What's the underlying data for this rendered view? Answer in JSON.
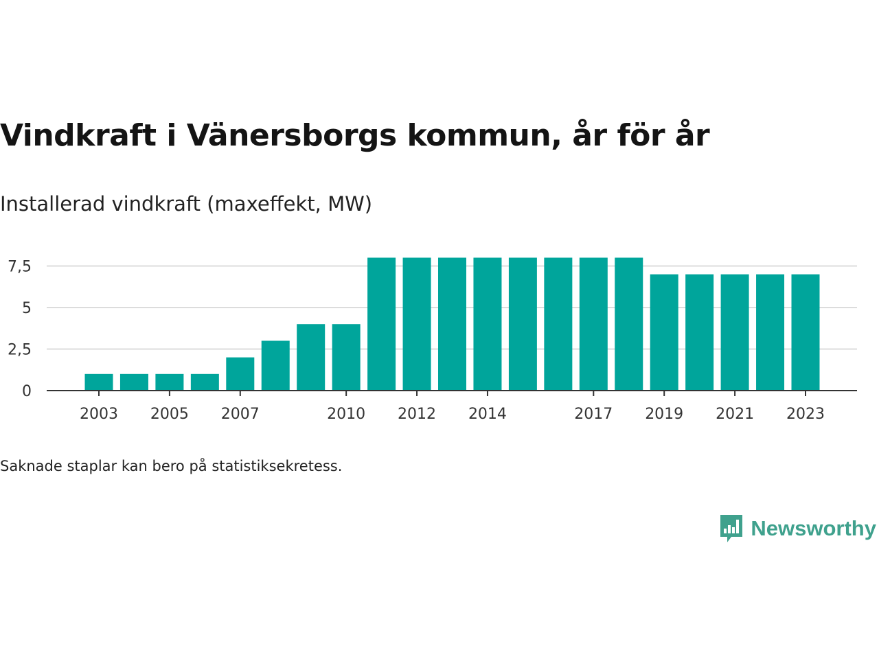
{
  "colors": {
    "bar": "#00a59b",
    "grid": "#dcdcdc",
    "axis": "#333333",
    "brand": "#3fa18d"
  },
  "chart_data": {
    "type": "bar",
    "title": "Vindkraft i Vänersborgs kommun, år för år",
    "subtitle": "Installerad vindkraft (maxeffekt, MW)",
    "categories": [
      "2003",
      "2004",
      "2005",
      "2006",
      "2007",
      "2008",
      "2009",
      "2010",
      "2011",
      "2012",
      "2013",
      "2014",
      "2015",
      "2016",
      "2017",
      "2018",
      "2019",
      "2020",
      "2021",
      "2022",
      "2023"
    ],
    "values": [
      1,
      1,
      1,
      1,
      2,
      3,
      4,
      4,
      8,
      8,
      8,
      8,
      8,
      8,
      8,
      8,
      7,
      7,
      7,
      7,
      7
    ],
    "x_tick_labels": [
      "2003",
      "2005",
      "2007",
      "2010",
      "2012",
      "2014",
      "2017",
      "2019",
      "2021",
      "2023"
    ],
    "y_ticks": [
      0,
      2.5,
      5,
      7.5
    ],
    "y_tick_labels": [
      "0",
      "2,5",
      "5",
      "7,5"
    ],
    "ylim": [
      0,
      8
    ],
    "grid": true,
    "legend": "none"
  },
  "footer": {
    "note": "Saknade staplar kan bero på statistiksekretess.",
    "brand": "Newsworthy",
    "brand_icon": "bar-chart-speech-bubble-icon"
  }
}
